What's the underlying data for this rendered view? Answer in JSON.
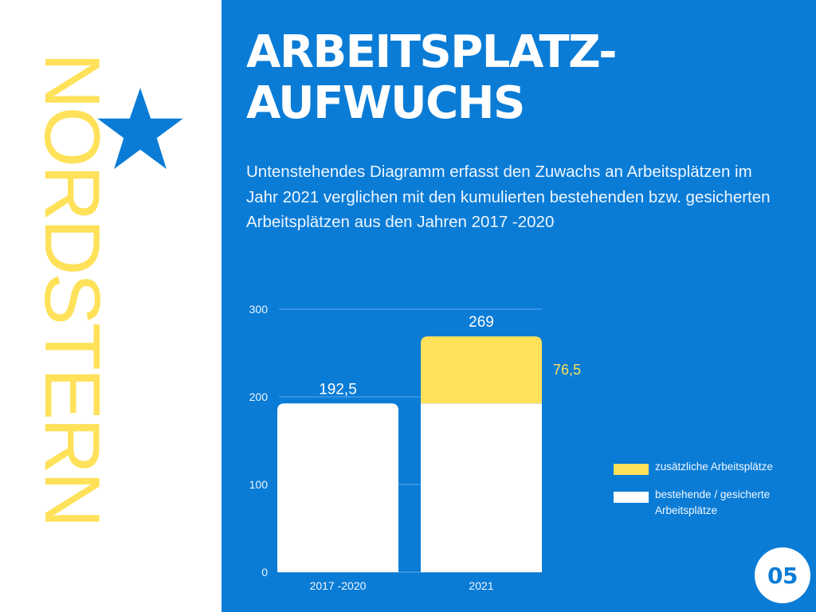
{
  "brand": {
    "name": "NORDSTERN",
    "icon": "star-icon",
    "text_color": "#ffe15a",
    "icon_color": "#0a7cd6"
  },
  "slide": {
    "title_lines": [
      "ARBEITSPLATZ-",
      "AUFWUCHS"
    ],
    "description": "Untenstehendes Diagramm erfasst den Zuwachs an Arbeitsplätzen im Jahr 2021 verglichen mit den kumulierten bestehenden bzw. gesicherten Arbeitsplätzen aus den Jahren 2017 -2020",
    "page_number": "05",
    "background_color": "#0a7cd6"
  },
  "chart_data": {
    "type": "bar",
    "stacked": true,
    "categories": [
      "2017 -2020",
      "2021"
    ],
    "series": [
      {
        "name": "bestehende / gesicherte Arbeitsplätze",
        "values": [
          192.5,
          192.5
        ],
        "color": "#ffffff"
      },
      {
        "name": "zusätzliche Arbeitsplätze",
        "values": [
          0,
          76.5
        ],
        "color": "#ffe15a"
      }
    ],
    "totals": [
      192.5,
      269
    ],
    "total_labels": [
      "192,5",
      "269"
    ],
    "segment_labels": [
      {
        "category": "2021",
        "series": "zusätzliche Arbeitsplätze",
        "text": "76,5"
      }
    ],
    "y_ticks": [
      0,
      100,
      200,
      300
    ],
    "y_tick_labels": [
      "0",
      "100",
      "200",
      "300"
    ],
    "ylim": [
      0,
      300
    ],
    "grid": true,
    "legend": {
      "position": "right",
      "items": [
        {
          "label": "zusätzliche Arbeitsplätze",
          "color": "#ffe15a"
        },
        {
          "label": "bestehende / gesicherte Arbeitsplätze",
          "color": "#ffffff"
        }
      ]
    },
    "title": "",
    "xlabel": "",
    "ylabel": ""
  }
}
